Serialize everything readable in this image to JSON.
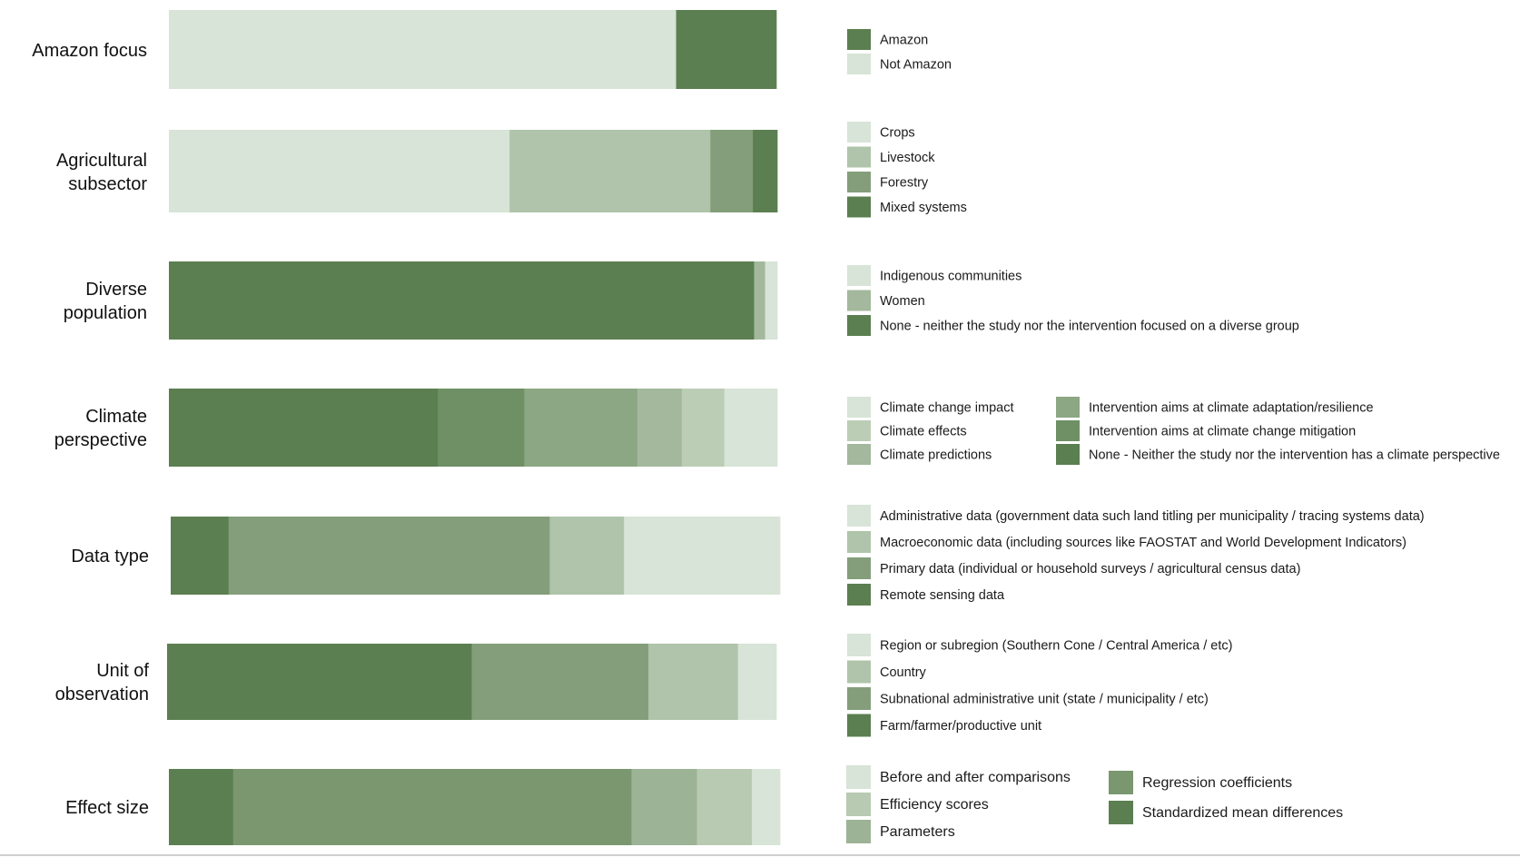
{
  "chart_data": {
    "type": "bar",
    "orientation": "horizontal",
    "stacked": true,
    "normalized": true,
    "rows": [
      {
        "label": [
          "Amazon focus"
        ],
        "segments": [
          {
            "name": "Not Amazon",
            "value": 0.835,
            "color": "#d7e4d7"
          },
          {
            "name": "Amazon",
            "value": 0.165,
            "color": "#5b7f50"
          }
        ],
        "legend_columns": [
          [
            "Amazon",
            "Not Amazon"
          ]
        ],
        "legend_colors": [
          [
            "#5b7f50",
            "#d7e4d7"
          ]
        ]
      },
      {
        "label": [
          "Agricultural",
          "subsector"
        ],
        "segments": [
          {
            "name": "Crops",
            "value": 0.56,
            "color": "#d7e4d7"
          },
          {
            "name": "Livestock",
            "value": 0.33,
            "color": "#afc4aa"
          },
          {
            "name": "Forestry",
            "value": 0.07,
            "color": "#849e7b"
          },
          {
            "name": "Mixed systems",
            "value": 0.04,
            "color": "#5b7f50"
          }
        ],
        "legend_columns": [
          [
            "Crops",
            "Livestock",
            "Forestry",
            "Mixed systems"
          ]
        ],
        "legend_colors": [
          [
            "#d7e4d7",
            "#afc4aa",
            "#849e7b",
            "#5b7f50"
          ]
        ]
      },
      {
        "label": [
          "Diverse",
          "population"
        ],
        "segments": [
          {
            "name": "None - neither the study nor the intervention focused on a diverse group",
            "value": 0.962,
            "color": "#5b7f50"
          },
          {
            "name": "Women",
            "value": 0.018,
            "color": "#a3b89c"
          },
          {
            "name": "Indigenous communities",
            "value": 0.02,
            "color": "#d7e4d7"
          }
        ],
        "legend_columns": [
          [
            "Indigenous communities",
            "Women",
            "None - neither the study nor the intervention focused on a diverse group"
          ]
        ],
        "legend_colors": [
          [
            "#d7e4d7",
            "#a3b89c",
            "#5b7f50"
          ]
        ]
      },
      {
        "label": [
          "Climate",
          "perspective"
        ],
        "segments": [
          {
            "name": "None - Neither the study nor the intervention has a climate perspective",
            "value": 0.442,
            "color": "#5b7f50"
          },
          {
            "name": "Intervention aims at climate change mitigation",
            "value": 0.142,
            "color": "#6f8f65"
          },
          {
            "name": "Intervention aims at climate adaptation/resilience",
            "value": 0.186,
            "color": "#8ca784"
          },
          {
            "name": "Climate predictions",
            "value": 0.073,
            "color": "#a3b89c"
          },
          {
            "name": "Climate effects",
            "value": 0.07,
            "color": "#bccdb6"
          },
          {
            "name": "Climate change impact",
            "value": 0.087,
            "color": "#d7e4d7"
          }
        ],
        "legend_columns": [
          [
            "Climate change impact",
            "Climate effects",
            "Climate predictions"
          ],
          [
            "Intervention aims at climate adaptation/resilience",
            "Intervention aims at climate change mitigation",
            "None - Neither the study nor the intervention has a climate perspective"
          ]
        ],
        "legend_colors": [
          [
            "#d7e4d7",
            "#bccdb6",
            "#a3b89c"
          ],
          [
            "#8ca784",
            "#6f8f65",
            "#5b7f50"
          ]
        ]
      },
      {
        "label": [
          "Data type"
        ],
        "segments": [
          {
            "name": "Remote sensing data",
            "value": 0.095,
            "color": "#5b7f50"
          },
          {
            "name": "Primary data (individual or household surveys / agricultural census data)",
            "value": 0.527,
            "color": "#849e7b"
          },
          {
            "name": "Macroeconomic data (including sources like FAOSTAT and World Development Indicators)",
            "value": 0.122,
            "color": "#afc4aa"
          },
          {
            "name": "Administrative data (government data such land titling per municipality / tracing systems data)",
            "value": 0.256,
            "color": "#d7e4d7"
          }
        ],
        "legend_columns": [
          [
            "Administrative data (government data such land titling per municipality / tracing systems data)",
            "Macroeconomic data (including sources like FAOSTAT and World Development Indicators)",
            "Primary data (individual or household surveys / agricultural census data)",
            "Remote sensing data"
          ]
        ],
        "legend_colors": [
          [
            "#d7e4d7",
            "#afc4aa",
            "#849e7b",
            "#5b7f50"
          ]
        ]
      },
      {
        "label": [
          "Unit of",
          "observation"
        ],
        "segments": [
          {
            "name": "Farm/farmer/productive unit",
            "value": 0.5,
            "color": "#5b7f50"
          },
          {
            "name": "Subnational administrative unit (state / municipality / etc)",
            "value": 0.29,
            "color": "#849e7b"
          },
          {
            "name": "Country",
            "value": 0.147,
            "color": "#afc4aa"
          },
          {
            "name": "Region or subregion (Southern Cone / Central America / etc)",
            "value": 0.063,
            "color": "#d7e4d7"
          }
        ],
        "legend_columns": [
          [
            "Region or subregion (Southern Cone / Central America / etc)",
            "Country",
            "Subnational administrative unit (state / municipality / etc)",
            "Farm/farmer/productive unit"
          ]
        ],
        "legend_colors": [
          [
            "#d7e4d7",
            "#afc4aa",
            "#849e7b",
            "#5b7f50"
          ]
        ]
      },
      {
        "label": [
          "Effect size"
        ],
        "segments": [
          {
            "name": "Standardized mean differences",
            "value": 0.105,
            "color": "#5b7f50"
          },
          {
            "name": "Regression coefficients",
            "value": 0.652,
            "color": "#7a976f"
          },
          {
            "name": "Parameters",
            "value": 0.107,
            "color": "#9db396"
          },
          {
            "name": "Efficiency scores",
            "value": 0.09,
            "color": "#b8cab2"
          },
          {
            "name": "Before and after comparisons",
            "value": 0.046,
            "color": "#d7e4d7"
          }
        ],
        "legend_columns": [
          [
            "Before and after comparisons",
            "Efficiency scores",
            "Parameters"
          ],
          [
            "Regression coefficients",
            "Standardized mean differences"
          ]
        ],
        "legend_colors": [
          [
            "#d7e4d7",
            "#b8cab2",
            "#9db396"
          ],
          [
            "#7a976f",
            "#5b7f50"
          ]
        ]
      }
    ]
  }
}
